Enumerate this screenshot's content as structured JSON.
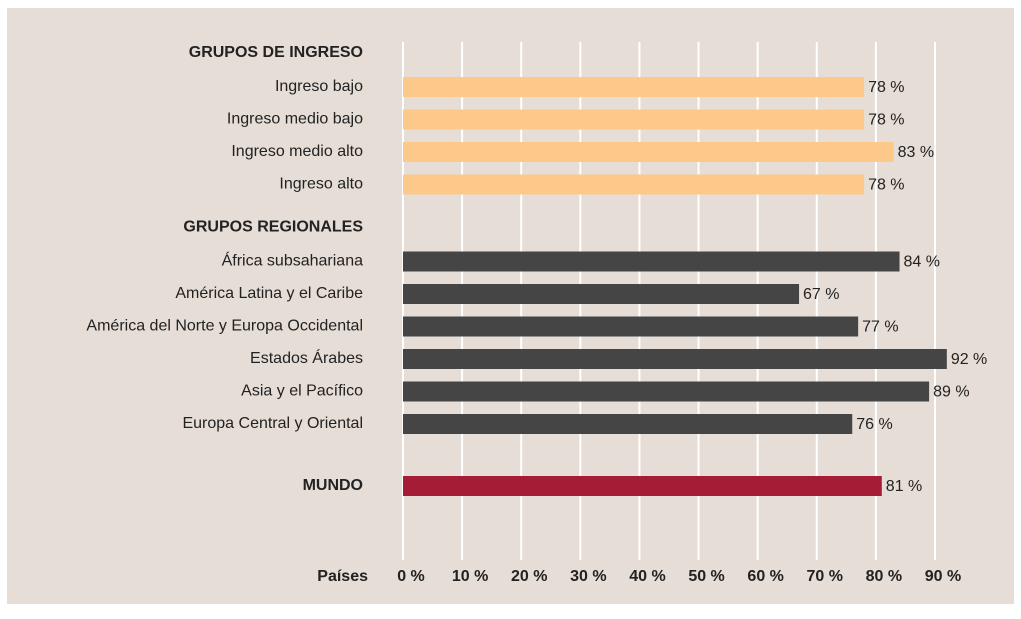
{
  "chart_data": {
    "type": "bar",
    "groups": [
      {
        "name": "GRUPOS DE INGRESO",
        "color": "#fdc98a",
        "categories": [
          "Ingreso bajo",
          "Ingreso medio bajo",
          "Ingreso medio alto",
          "Ingreso alto"
        ],
        "values": [
          78,
          78,
          83,
          78
        ],
        "value_labels": [
          "78 %",
          "78 %",
          "83 %",
          "78 %"
        ]
      },
      {
        "name": "GRUPOS REGIONALES",
        "color": "#454545",
        "categories": [
          "África subsahariana",
          "América Latina y el Caribe",
          "América del Norte y Europa Occidental",
          "Estados Árabes",
          "Asia y el Pacífico",
          "Europa Central y Oriental"
        ],
        "values": [
          84,
          67,
          77,
          92,
          89,
          76
        ],
        "value_labels": [
          "84 %",
          "67 %",
          "77 %",
          "92 %",
          "89 %",
          "76 %"
        ]
      },
      {
        "name": "MUNDO",
        "color": "#a51c37",
        "values": [
          81
        ],
        "value_labels": [
          "81 %"
        ]
      }
    ],
    "x_label": "Países",
    "xlim": [
      0,
      90
    ],
    "xticks": [
      {
        "value": 0,
        "label": "0 %"
      },
      {
        "value": 10,
        "label": "10 %"
      },
      {
        "value": 20,
        "label": "20 %"
      },
      {
        "value": 30,
        "label": "30 %"
      },
      {
        "value": 40,
        "label": "40 %"
      },
      {
        "value": 50,
        "label": "50 %"
      },
      {
        "value": 60,
        "label": "60 %"
      },
      {
        "value": 70,
        "label": "70 %"
      },
      {
        "value": 80,
        "label": "80 %"
      },
      {
        "value": 90,
        "label": "90 %"
      }
    ],
    "grid": true
  }
}
